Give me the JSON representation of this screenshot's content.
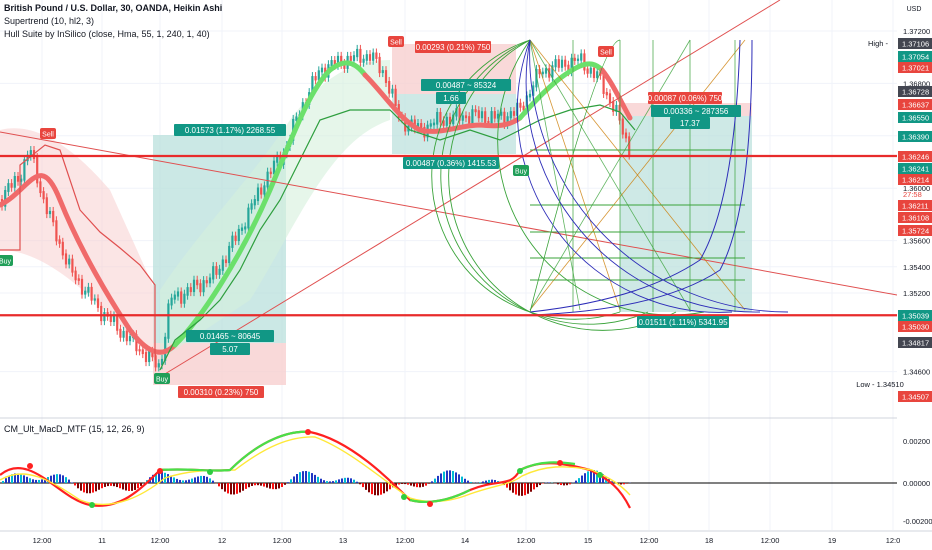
{
  "header": {
    "title": "British Pound / U.S. Dollar, 30, OANDA, Heikin Ashi",
    "indicator_1": "Supertrend (10, hl2, 3)",
    "indicator_2": "Hull Suite by InSilico (close, Hma, 55, 1, 240, 1, 40)",
    "currency": "USD"
  },
  "macd": {
    "title": "CM_Ult_MacD_MTF (15, 12, 26, 9)",
    "axis_labels": [
      "0.00200",
      "0.00000",
      "-0.00200"
    ]
  },
  "chart_data": {
    "type": "candlestick",
    "symbol": "GBPUSD",
    "timeframe": "30",
    "chart_style": "Heikin Ashi",
    "y_ticks": [
      "1.37200",
      "1.36800",
      "1.36400",
      "1.36000",
      "1.35600",
      "1.35400",
      "1.35200",
      "1.34600"
    ],
    "price_labels": [
      {
        "text": "1.37106",
        "kind": "dark"
      },
      {
        "text": "1.37054",
        "kind": "green"
      },
      {
        "text": "1.37021",
        "kind": "red"
      },
      {
        "text": "1.36728",
        "kind": "dark"
      },
      {
        "text": "1.36637",
        "kind": "red"
      },
      {
        "text": "1.36550",
        "kind": "green"
      },
      {
        "text": "1.36390",
        "kind": "green"
      },
      {
        "text": "1.36246",
        "kind": "red"
      },
      {
        "text": "1.36241",
        "kind": "green"
      },
      {
        "text": "1.36214",
        "kind": "red"
      },
      {
        "text": "27:58",
        "kind": "red_plain"
      },
      {
        "text": "1.36211",
        "kind": "red"
      },
      {
        "text": "1.36108",
        "kind": "red"
      },
      {
        "text": "1.35724",
        "kind": "red"
      },
      {
        "text": "1.35039",
        "kind": "green"
      },
      {
        "text": "1.35030",
        "kind": "red"
      },
      {
        "text": "1.34817",
        "kind": "dark"
      },
      {
        "text": "1.34507",
        "kind": "red"
      }
    ],
    "high": {
      "tag": "High",
      "value": "1.37106"
    },
    "low": {
      "tag": "Low",
      "value": "1.34510"
    },
    "x_ticks": [
      "12:00",
      "11",
      "12:00",
      "12",
      "12:00",
      "13",
      "12:00",
      "14",
      "12:00",
      "15",
      "12:00",
      "18",
      "12:00",
      "19",
      "12:0"
    ],
    "horizontal_levels": [
      1.36246,
      1.3503
    ],
    "signals": [
      {
        "type": "Sell",
        "price": 1.3679
      },
      {
        "type": "Buy",
        "price": 1.3563
      },
      {
        "type": "Buy",
        "price": 1.3455
      },
      {
        "type": "Sell",
        "price": 1.3724
      },
      {
        "type": "Buy",
        "price": 1.362
      },
      {
        "type": "Sell",
        "price": 1.3712
      }
    ],
    "position_labels": [
      {
        "text": "0.01573 (1.17%) 2268.55",
        "style": "green"
      },
      {
        "text": "0.01465 ~ 80645",
        "style": "green"
      },
      {
        "text": "5.07",
        "style": "green"
      },
      {
        "text": "0.00310 (0.23%) 750",
        "style": "red"
      },
      {
        "text": "0.00293 (0.21%) 750",
        "style": "red"
      },
      {
        "text": "0.00487 ~ 85324",
        "style": "green"
      },
      {
        "text": "1.66",
        "style": "green"
      },
      {
        "text": "0.00487 (0.36%) 1415.53",
        "style": "green"
      },
      {
        "text": "0.00087 (0.06%) 750",
        "style": "red"
      },
      {
        "text": "0.00336 ~ 287356",
        "style": "green"
      },
      {
        "text": "17.37",
        "style": "green"
      },
      {
        "text": "0.01511 (1.11%) 5341.95",
        "style": "green"
      }
    ],
    "colors": {
      "up": "#26a69a",
      "down": "#ef5350",
      "hull_up": "#6be06b",
      "hull_down": "#f06a6a",
      "profit_zone": "#b9e0dc",
      "loss_zone": "#f8cfcf",
      "level": "#e82b2b"
    }
  }
}
